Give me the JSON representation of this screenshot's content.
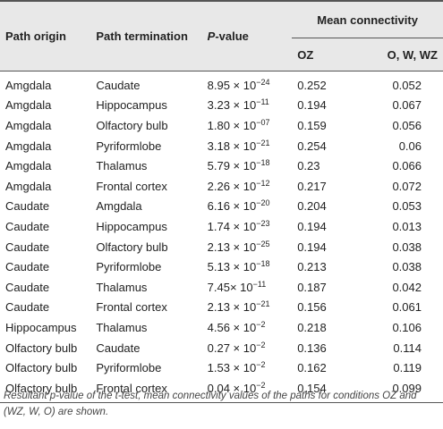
{
  "headers": {
    "path_origin": "Path origin",
    "path_termination": "Path termination",
    "pvalue_italic": "P",
    "pvalue_rest": "-value",
    "mean_connectivity": "Mean connectivity",
    "oz": "OZ",
    "owwz": "O, W, WZ"
  },
  "rows": [
    {
      "origin": "Amgdala",
      "termination": "Caudate",
      "p_mant": "8.95 × 10",
      "p_exp": "−24",
      "oz": "0.252",
      "owwz": "0.052"
    },
    {
      "origin": "Amgdala",
      "termination": "Hippocampus",
      "p_mant": "3.23 × 10",
      "p_exp": "−11",
      "oz": "0.194",
      "owwz": "0.067"
    },
    {
      "origin": "Amgdala",
      "termination": "Olfactory bulb",
      "p_mant": "1.80 × 10",
      "p_exp": "−07",
      "oz": "0.159",
      "owwz": "0.056"
    },
    {
      "origin": "Amgdala",
      "termination": "Pyriformlobe",
      "p_mant": "3.18 × 10",
      "p_exp": "−21",
      "oz": "0.254",
      "owwz": "0.06"
    },
    {
      "origin": "Amgdala",
      "termination": "Thalamus",
      "p_mant": "5.79 × 10",
      "p_exp": "−18",
      "oz": "0.23",
      "owwz": "0.066"
    },
    {
      "origin": "Amgdala",
      "termination": "Frontal cortex",
      "p_mant": "2.26 × 10",
      "p_exp": "−12",
      "oz": "0.217",
      "owwz": "0.072"
    },
    {
      "origin": "Caudate",
      "termination": "Amgdala",
      "p_mant": "6.16 × 10",
      "p_exp": "−20",
      "oz": "0.204",
      "owwz": "0.053"
    },
    {
      "origin": "Caudate",
      "termination": "Hippocampus",
      "p_mant": "1.74 × 10",
      "p_exp": "−23",
      "oz": "0.194",
      "owwz": "0.013"
    },
    {
      "origin": "Caudate",
      "termination": "Olfactory bulb",
      "p_mant": "2.13 × 10",
      "p_exp": "−25",
      "oz": "0.194",
      "owwz": "0.038"
    },
    {
      "origin": "Caudate",
      "termination": "Pyriformlobe",
      "p_mant": "5.13 × 10",
      "p_exp": "−18",
      "oz": "0.213",
      "owwz": "0.038"
    },
    {
      "origin": "Caudate",
      "termination": "Thalamus",
      "p_mant": "7.45× 10",
      "p_exp": "−11",
      "oz": "0.187",
      "owwz": "0.042"
    },
    {
      "origin": "Caudate",
      "termination": "Frontal cortex",
      "p_mant": "2.13 × 10",
      "p_exp": "−21",
      "oz": "0.156",
      "owwz": "0.061"
    },
    {
      "origin": "Hippocampus",
      "termination": "Thalamus",
      "p_mant": "4.56 × 10",
      "p_exp": "−2",
      "oz": "0.218",
      "owwz": "0.106"
    },
    {
      "origin": "Olfactory bulb",
      "termination": "Caudate",
      "p_mant": "0.27 × 10",
      "p_exp": "−2",
      "oz": "0.136",
      "owwz": "0.114"
    },
    {
      "origin": "Olfactory bulb",
      "termination": "Pyriformlobe",
      "p_mant": "1.53 × 10",
      "p_exp": "−2",
      "oz": "0.162",
      "owwz": "0.119"
    },
    {
      "origin": "Olfactory bulb",
      "termination": "Frontal cortex",
      "p_mant": "0.04 × 10",
      "p_exp": "−2",
      "oz": "0.154",
      "owwz": "0.099"
    }
  ],
  "caption": "Resultant p-value of the t-test, mean connectivity values of the paths for conditions OZ and (WZ, W, O) are shown."
}
